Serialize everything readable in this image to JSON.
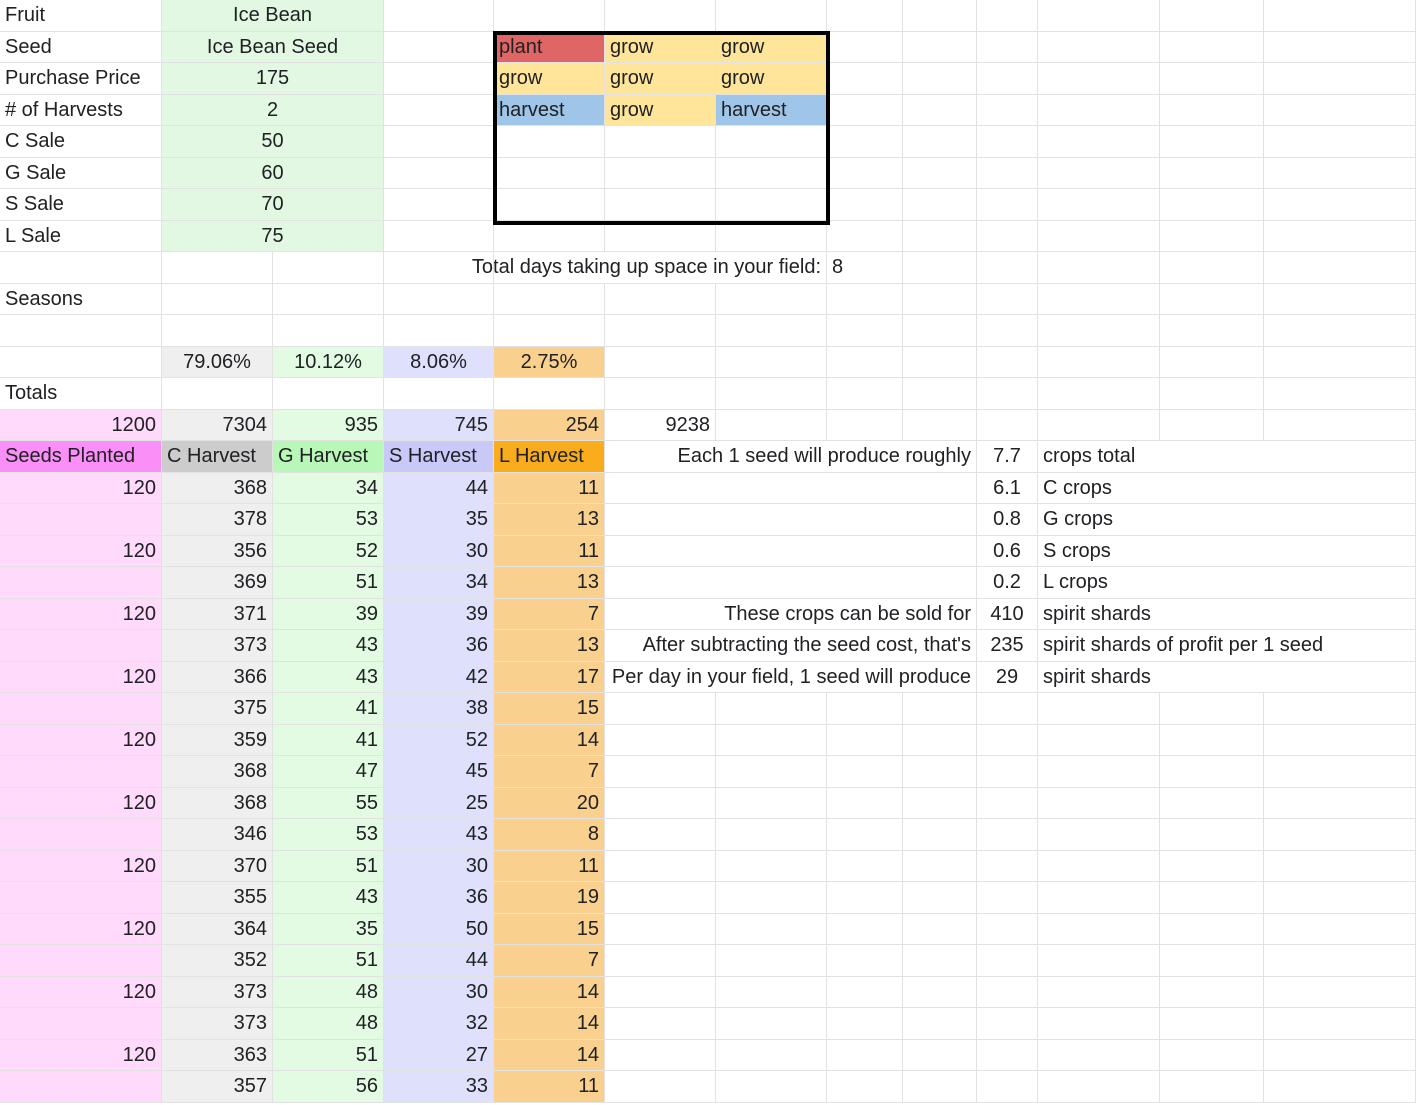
{
  "colors": {
    "info_value_green": "#e2f8e2",
    "plant_red": "#e06666",
    "grow_yellow": "#ffe599",
    "harvest_blue": "#9fc5e8",
    "seeds_pink": "#ffdafb",
    "seeds_header_pink": "#fa8ff7",
    "c_gray": "#efefef",
    "c_header_gray": "#cccccc",
    "g_green": "#e2fbe2",
    "g_header_green": "#b8f7b8",
    "s_lavender": "#dfe0fb",
    "s_header_lavender": "#c8c9f9",
    "l_orange": "#f9d08d",
    "l_header_orange": "#f9ad1d"
  },
  "info": [
    {
      "label": "Fruit",
      "value": "Ice Bean"
    },
    {
      "label": "Seed",
      "value": "Ice Bean Seed"
    },
    {
      "label": "Purchase Price",
      "value": "175"
    },
    {
      "label": "# of Harvests",
      "value": "2"
    },
    {
      "label": "C Sale",
      "value": "50"
    },
    {
      "label": "G Sale",
      "value": "60"
    },
    {
      "label": "S Sale",
      "value": "70"
    },
    {
      "label": "L Sale",
      "value": "75"
    }
  ],
  "growth_plan": [
    [
      "plant",
      "grow",
      "grow"
    ],
    [
      "grow",
      "grow",
      "grow"
    ],
    [
      "harvest",
      "grow",
      "harvest"
    ]
  ],
  "field_days": {
    "label": "Total days taking up space in your field:",
    "value": "8"
  },
  "seasons_label": "Seasons",
  "percentages": [
    "79.06%",
    "10.12%",
    "8.06%",
    "2.75%"
  ],
  "totals_label": "Totals",
  "totals": [
    "1200",
    "7304",
    "935",
    "745",
    "254"
  ],
  "grand_total": "9238",
  "headers": [
    "Seeds Planted",
    "C Harvest",
    "G Harvest",
    "S Harvest",
    "L Harvest"
  ],
  "rows": [
    [
      "120",
      "368",
      "34",
      "44",
      "11"
    ],
    [
      "",
      "378",
      "53",
      "35",
      "13"
    ],
    [
      "120",
      "356",
      "52",
      "30",
      "11"
    ],
    [
      "",
      "369",
      "51",
      "34",
      "13"
    ],
    [
      "120",
      "371",
      "39",
      "39",
      "7"
    ],
    [
      "",
      "373",
      "43",
      "36",
      "13"
    ],
    [
      "120",
      "366",
      "43",
      "42",
      "17"
    ],
    [
      "",
      "375",
      "41",
      "38",
      "15"
    ],
    [
      "120",
      "359",
      "41",
      "52",
      "14"
    ],
    [
      "",
      "368",
      "47",
      "45",
      "7"
    ],
    [
      "120",
      "368",
      "55",
      "25",
      "20"
    ],
    [
      "",
      "346",
      "53",
      "43",
      "8"
    ],
    [
      "120",
      "370",
      "51",
      "30",
      "11"
    ],
    [
      "",
      "355",
      "43",
      "36",
      "19"
    ],
    [
      "120",
      "364",
      "35",
      "50",
      "15"
    ],
    [
      "",
      "352",
      "51",
      "44",
      "7"
    ],
    [
      "120",
      "373",
      "48",
      "30",
      "14"
    ],
    [
      "",
      "373",
      "48",
      "32",
      "14"
    ],
    [
      "120",
      "363",
      "51",
      "27",
      "14"
    ],
    [
      "",
      "357",
      "56",
      "33",
      "11"
    ]
  ],
  "summary": [
    {
      "label": "Each 1 seed will produce roughly",
      "value": "7.7",
      "unit": "crops total"
    },
    {
      "label": "",
      "value": "6.1",
      "unit": "C crops"
    },
    {
      "label": "",
      "value": "0.8",
      "unit": "G crops"
    },
    {
      "label": "",
      "value": "0.6",
      "unit": "S crops"
    },
    {
      "label": "",
      "value": "0.2",
      "unit": "L crops"
    },
    {
      "label": "These crops can be sold for",
      "value": "410",
      "unit": "spirit shards"
    },
    {
      "label": "After subtracting the seed cost, that's",
      "value": "235",
      "unit": "spirit shards of profit per 1 seed"
    },
    {
      "label": "Per day in your field, 1 seed will produce",
      "value": "29",
      "unit": "spirit shards"
    }
  ]
}
